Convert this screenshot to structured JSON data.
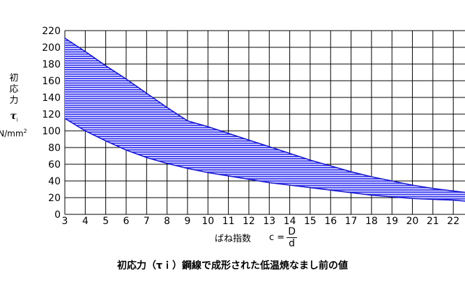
{
  "chart_data": {
    "type": "area",
    "title": "",
    "caption": "初応力（τｉ）鋼線で成形された低温焼なまし前の値",
    "ylabel_chars": [
      "初",
      "応",
      "力"
    ],
    "ylabel_symbol": "τ",
    "ylabel_symbol_sub": "i",
    "ylabel_unit": "N/mm",
    "ylabel_unit_sup": "2",
    "xlabel": "ばね指数",
    "xlabel_formula_lhs": "c =",
    "xlabel_formula_num": "D",
    "xlabel_formula_den": "d",
    "x_ticks": [
      3,
      4,
      5,
      6,
      7,
      8,
      9,
      10,
      11,
      12,
      13,
      14,
      15,
      16,
      17,
      18,
      19,
      20,
      21,
      22
    ],
    "y_ticks": [
      0,
      20,
      40,
      60,
      80,
      100,
      120,
      140,
      160,
      180,
      200,
      220
    ],
    "ylim": [
      0,
      220
    ],
    "grid": true,
    "series": [
      {
        "role": "upper",
        "x": [
          3,
          4,
          5,
          6,
          7,
          8,
          9,
          10,
          11,
          12,
          13,
          14,
          15,
          16,
          17,
          18,
          19,
          20,
          21,
          22,
          23
        ],
        "values": [
          211,
          195,
          178,
          162,
          145,
          128,
          112,
          105,
          97,
          89,
          81,
          73,
          65,
          58,
          51,
          45,
          40,
          35,
          31,
          28,
          25
        ]
      },
      {
        "role": "lower",
        "x": [
          3,
          4,
          5,
          6,
          7,
          8,
          9,
          10,
          11,
          12,
          13,
          14,
          15,
          16,
          17,
          18,
          19,
          20,
          21,
          22,
          23
        ],
        "values": [
          115,
          100,
          88,
          77,
          68,
          61,
          55,
          50,
          46,
          42,
          38,
          35,
          32,
          29,
          26,
          23,
          21,
          19,
          18,
          17,
          15
        ]
      }
    ],
    "colors": {
      "band": "#3a3af0",
      "stripe": "#ffffff",
      "curve": "#1a1ad0",
      "grid": "#000000"
    }
  }
}
